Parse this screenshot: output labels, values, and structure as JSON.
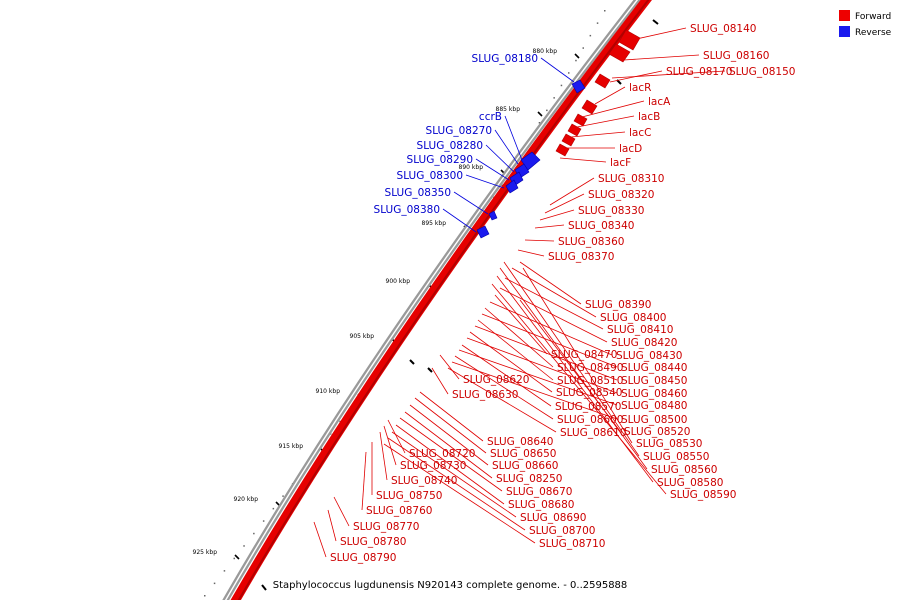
{
  "caption": "Staphylococcus lugdunensis N920143 complete genome. - 0..2595888",
  "legend": [
    {
      "label": "Forward",
      "color": "#ee0000"
    },
    {
      "label": "Reverse",
      "color": "#1a1aee"
    }
  ],
  "ticks": [
    "880 kbp",
    "885 kbp",
    "890 kbp",
    "895 kbp",
    "900 kbp",
    "905 kbp",
    "910 kbp",
    "915 kbp",
    "920 kbp",
    "925 kbp"
  ],
  "forward_labels": [
    "SLUG_08140",
    "SLUG_08160",
    "SLUG_08170",
    "SLUG_08150",
    "lacR",
    "lacA",
    "lacB",
    "lacC",
    "lacD",
    "lacF",
    "SLUG_08310",
    "SLUG_08320",
    "SLUG_08330",
    "SLUG_08340",
    "SLUG_08360",
    "SLUG_08370",
    "SLUG_08390",
    "SLUG_08400",
    "SLUG_08410",
    "SLUG_08420",
    "SLUG_08470",
    "SLUG_08430",
    "SLUG_08490",
    "SLUG_08440",
    "SLUG_08510",
    "SLUG_08450",
    "SLUG_08620",
    "SLUG_08540",
    "SLUG_08460",
    "SLUG_08630",
    "SLUG_08570",
    "SLUG_08480",
    "SLUG_08600",
    "SLUG_08500",
    "SLUG_08610",
    "SLUG_08520",
    "SLUG_08640",
    "SLUG_08530",
    "SLUG_08650",
    "SLUG_08550",
    "SLUG_08720",
    "SLUG_08660",
    "SLUG_08560",
    "SLUG_08730",
    "SLUG_08250",
    "SLUG_08580",
    "SLUG_08740",
    "SLUG_08670",
    "SLUG_08590",
    "SLUG_08750",
    "SLUG_08680",
    "SLUG_08760",
    "SLUG_08690",
    "SLUG_08770",
    "SLUG_08700",
    "SLUG_08780",
    "SLUG_08710",
    "SLUG_08790"
  ],
  "reverse_labels": [
    "SLUG_08180",
    "ccrB",
    "SLUG_08270",
    "SLUG_08280",
    "SLUG_08290",
    "SLUG_08300",
    "SLUG_08350",
    "SLUG_08380"
  ]
}
